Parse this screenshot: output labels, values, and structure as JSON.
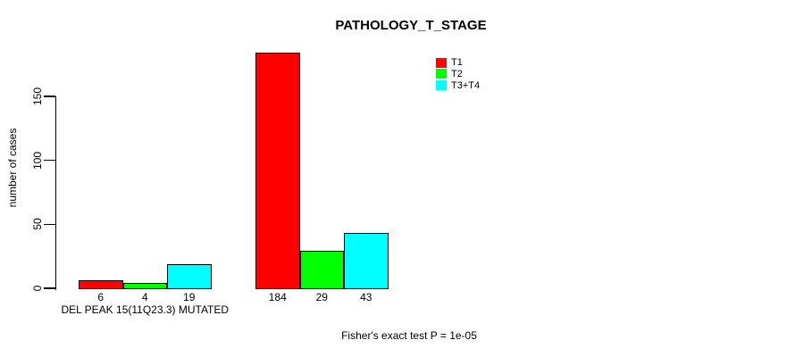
{
  "chart_data": {
    "type": "bar",
    "title": "PATHOLOGY_T_STAGE",
    "ylabel": "number of cases",
    "xlabel": "",
    "ylim": [
      0,
      184
    ],
    "yticks": [
      0,
      50,
      100,
      150
    ],
    "grid": false,
    "background": "#ffffff",
    "bar_border_color": "#000000",
    "categories": [
      "DEL PEAK 15(11Q23.3) MUTATED",
      ""
    ],
    "series": [
      {
        "name": "T1",
        "color": "#ff0000",
        "values": [
          6,
          184
        ]
      },
      {
        "name": "T2",
        "color": "#00ff00",
        "values": [
          4,
          29
        ]
      },
      {
        "name": "T3+T4",
        "color": "#00ffff",
        "values": [
          19,
          43
        ]
      }
    ],
    "value_labels_shown": true,
    "legend": {
      "position": "top-right",
      "entries": [
        "T1",
        "T2",
        "T3+T4"
      ]
    },
    "annotation": "Fisher's exact test P = 1e-05"
  }
}
